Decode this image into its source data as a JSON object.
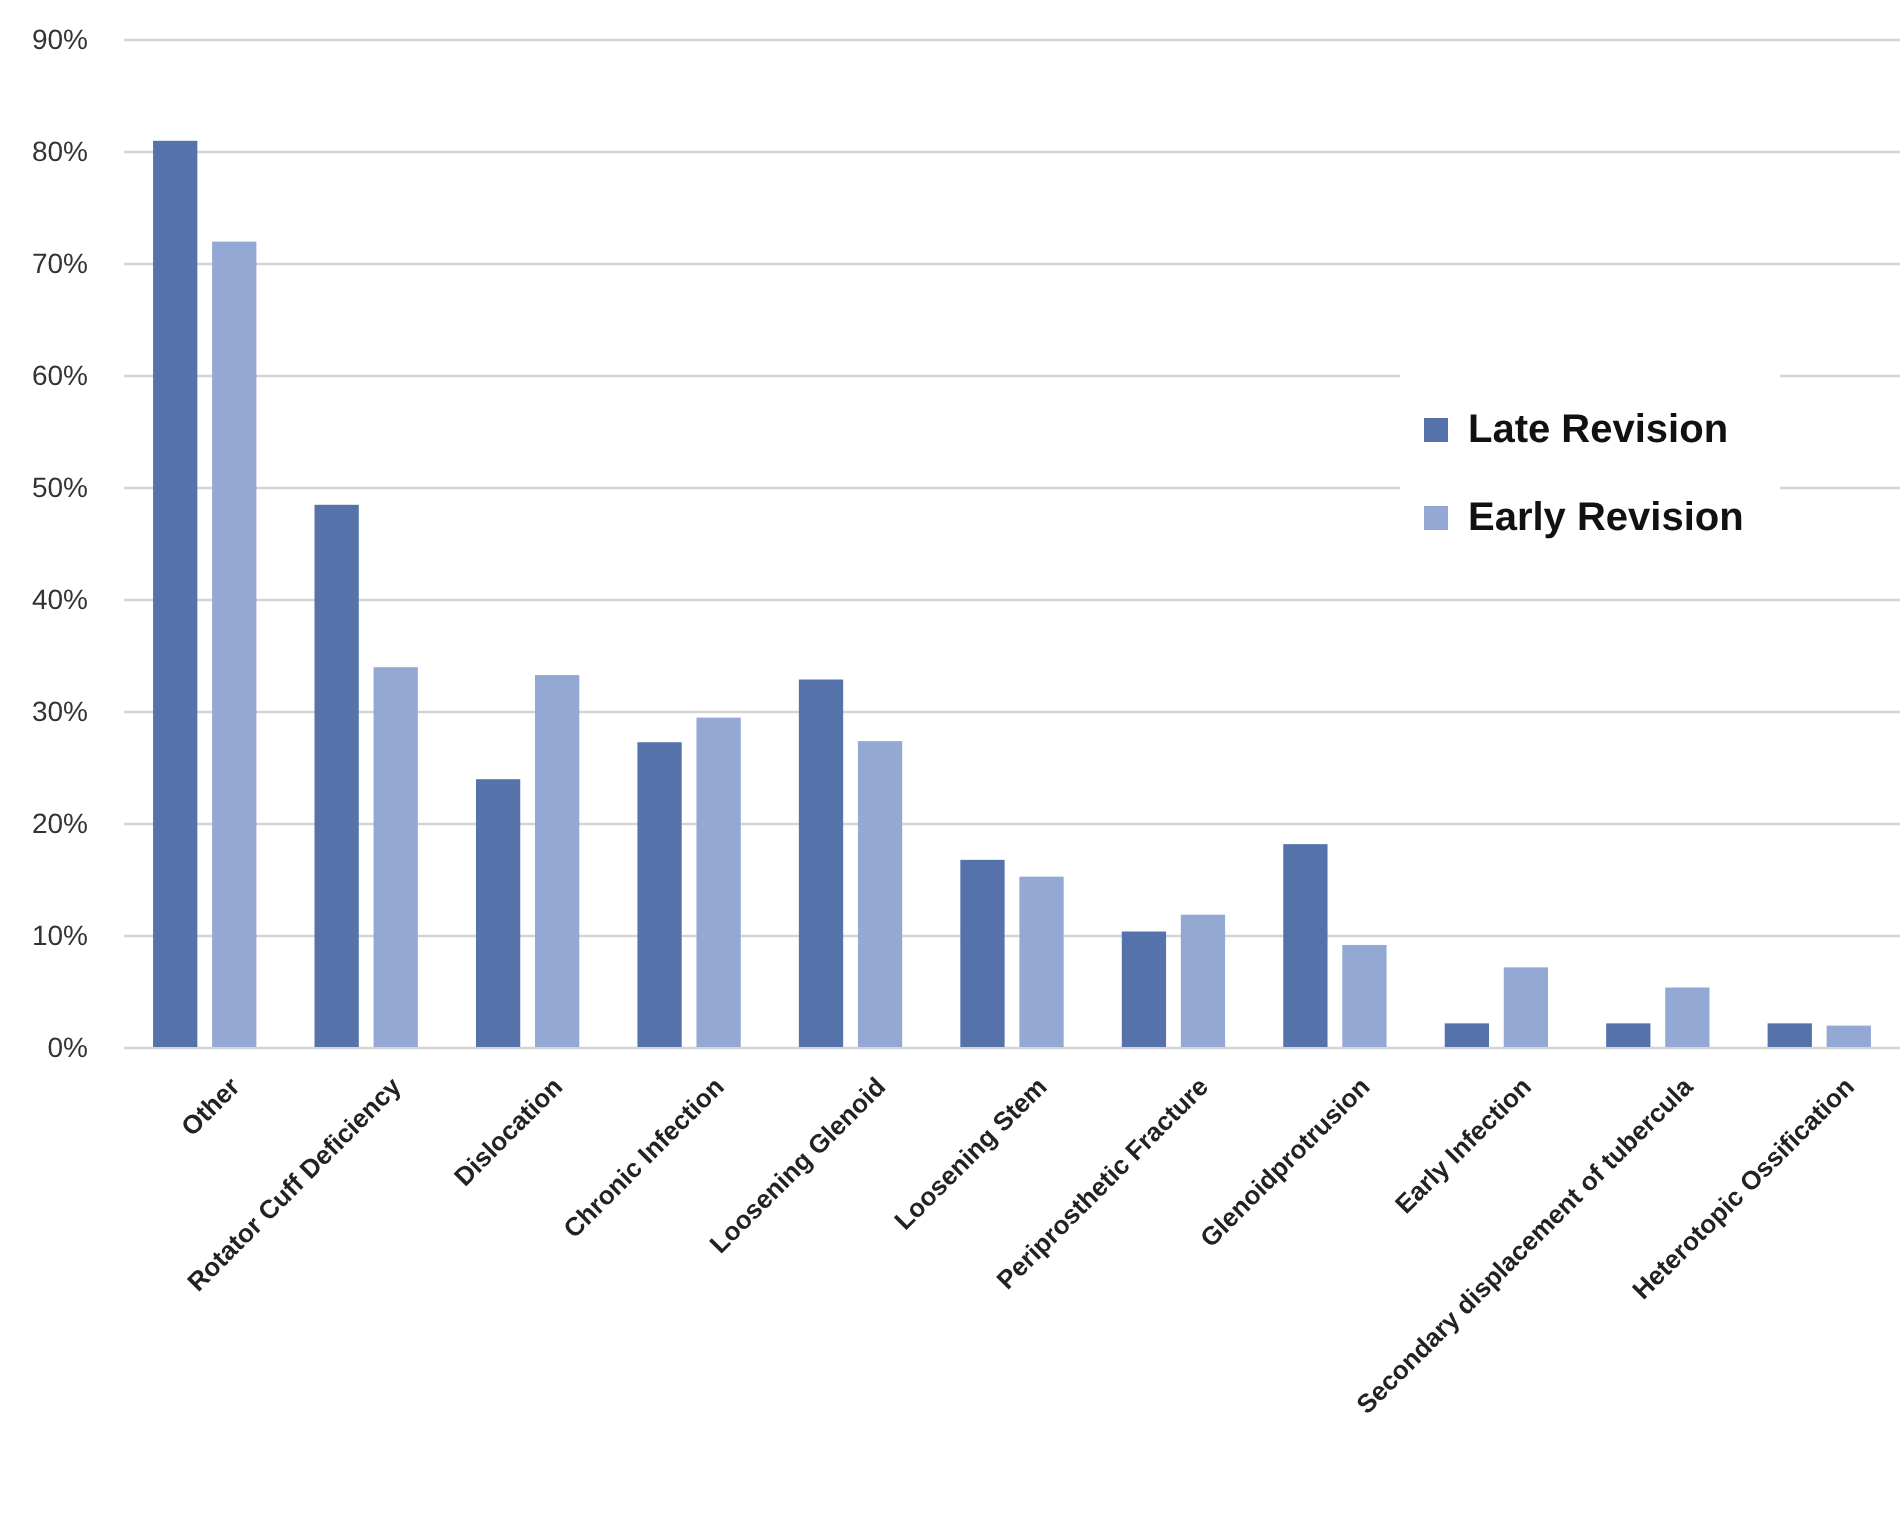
{
  "chart_data": {
    "type": "bar",
    "categories": [
      "Other",
      "Rotator Cuff Deficiency",
      "Dislocation",
      "Chronic Infection",
      "Loosening Glenoid",
      "Loosening Stem",
      "Periprosthetic Fracture",
      "Glenoidprotrusion",
      "Early Infection",
      "Secondary displacement of tubercula",
      "Heterotopic Ossification"
    ],
    "series": [
      {
        "name": "Late Revision",
        "color": "#5672aa",
        "values": [
          81,
          48.5,
          24,
          27.3,
          32.9,
          16.8,
          10.4,
          18.2,
          2.2,
          2.2,
          2.2
        ]
      },
      {
        "name": "Early Revision",
        "color": "#94a8d4",
        "values": [
          72,
          34,
          33.3,
          29.5,
          27.4,
          15.3,
          11.9,
          9.2,
          7.2,
          5.4,
          2
        ]
      }
    ],
    "ylim": [
      0,
      90
    ],
    "yticks": [
      {
        "value": 0,
        "label": "0%"
      },
      {
        "value": 10,
        "label": "10%"
      },
      {
        "value": 20,
        "label": "20%"
      },
      {
        "value": 30,
        "label": "30%"
      },
      {
        "value": 40,
        "label": "40%"
      },
      {
        "value": 50,
        "label": "50%"
      },
      {
        "value": 60,
        "label": "60%"
      },
      {
        "value": 70,
        "label": "70%"
      },
      {
        "value": 80,
        "label": "80%"
      },
      {
        "value": 90,
        "label": "90%"
      }
    ],
    "grid": true,
    "legend": "right"
  }
}
